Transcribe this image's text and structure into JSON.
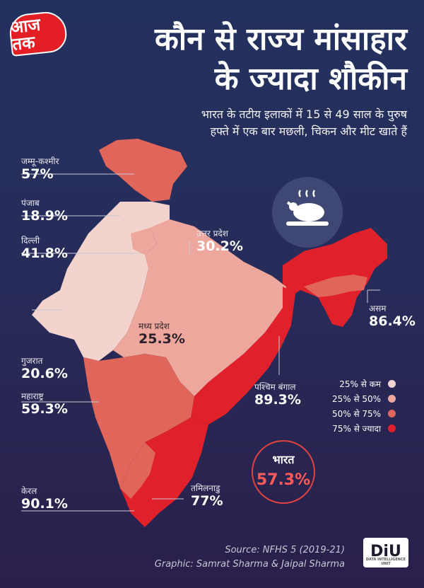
{
  "brand": {
    "logo_text": "आज तक"
  },
  "title": {
    "line1": "कौन से राज्य मांसाहार",
    "line2": "के ज्यादा शौकीन"
  },
  "subtitle": {
    "line1": "भारत के तटीय इलाकों में 15 से 49 साल के पुरुष",
    "line2": "हफ्ते में एक बार मछली, चिकन और मीट खाते हैं"
  },
  "icon": "roast-chicken-icon",
  "colors": {
    "below_25": "#f3d3cd",
    "from_25_to_50": "#eda79c",
    "from_50_to_75": "#e0655a",
    "above_75": "#e0202a"
  },
  "states": [
    {
      "name": "जम्मू-कश्मीर",
      "value": "57%",
      "category": "from_50_to_75"
    },
    {
      "name": "पंजाब",
      "value": "18.9%",
      "category": "below_25"
    },
    {
      "name": "दिल्ली",
      "value": "41.8%",
      "category": "from_25_to_50"
    },
    {
      "name": "उत्तर प्रदेश",
      "value": "30.2%",
      "category": "from_25_to_50"
    },
    {
      "name": "असम",
      "value": "86.4%",
      "category": "above_75"
    },
    {
      "name": "मध्य प्रदेश",
      "value": "25.3%",
      "category": "from_25_to_50"
    },
    {
      "name": "गुजरात",
      "value": "20.6%",
      "category": "below_25"
    },
    {
      "name": "पश्चिम बंगाल",
      "value": "89.3%",
      "category": "above_75"
    },
    {
      "name": "महाराष्ट्र",
      "value": "59.3%",
      "category": "from_50_to_75"
    },
    {
      "name": "केरल",
      "value": "90.1%",
      "category": "above_75"
    },
    {
      "name": "तमिलनाडु",
      "value": "77%",
      "category": "above_75"
    }
  ],
  "legend": [
    {
      "label": "25% से कम",
      "color": "#f3d3cd"
    },
    {
      "label": "25% से 50%",
      "color": "#eda79c"
    },
    {
      "label": "50% से 75%",
      "color": "#e0655a"
    },
    {
      "label": "75% से ज्यादा",
      "color": "#e0202a"
    }
  ],
  "national": {
    "name": "भारत",
    "value": "57.3%"
  },
  "source": {
    "line1": "Source: NFHS 5 (2019-21)",
    "line2": "Graphic: Samrat Sharma & Jaipal Sharma"
  },
  "partner_logo": {
    "text": "DiU",
    "tagline": "DATA INTELLIGENCE UNIT"
  }
}
